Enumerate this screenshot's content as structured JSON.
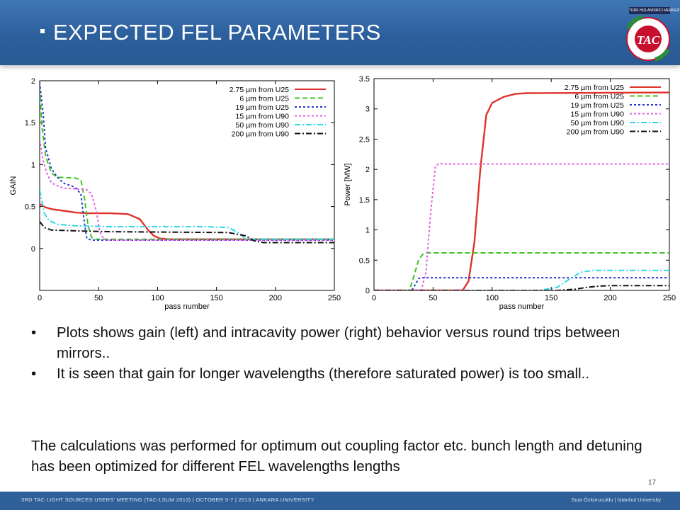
{
  "slide": {
    "title": "EXPECTED FEL PARAMETERS",
    "page_number": "17",
    "logo_text": "TAC",
    "logo_topbar": "TÜRK HIZLANDIRICI MERKEZİ",
    "logo_ring": "TURKISH ACCELERATOR CENTER",
    "footer_left": "3RD TAC LIGHT SOURCES USERS' MEETING (TAC-LSUM 2013) | OCTOBER 5-7 | 2013 | ANKARA UNIVERSITY",
    "footer_right": "Suat Özkorucuklu | İstanbul University",
    "colors": {
      "header": "#2f64a2",
      "footer": "#2f5f98",
      "logo_red": "#c8102e",
      "logo_green": "#2e8b3a"
    }
  },
  "bullets": [
    "Plots shows gain (left) and intracavity power (right) behavior versus round trips between mirrors..",
    "It is seen that gain for longer wavelengths (therefore saturated power) is too small.."
  ],
  "paragraph": "The calculations was performed for optimum out coupling factor etc. bunch length and  detuning has been optimized for different FEL wavelengths lengths",
  "chart_data": [
    {
      "type": "line",
      "title": "",
      "xlabel": "pass number",
      "ylabel": "GAIN",
      "xlim": [
        0,
        250
      ],
      "ylim": [
        -0.5,
        2
      ],
      "xticks": [
        "0",
        "50",
        "100",
        "150",
        "200",
        "250"
      ],
      "yticks": [
        "0",
        "0.5",
        "1",
        "1.5",
        "2"
      ],
      "legend_position": "top-right",
      "series": [
        {
          "name": "2.75 µm from U25",
          "color": "#e0322b",
          "style": "solid",
          "points": [
            [
              0,
              0.53
            ],
            [
              5,
              0.49
            ],
            [
              10,
              0.47
            ],
            [
              20,
              0.45
            ],
            [
              30,
              0.43
            ],
            [
              40,
              0.42
            ],
            [
              60,
              0.42
            ],
            [
              75,
              0.41
            ],
            [
              85,
              0.35
            ],
            [
              92,
              0.22
            ],
            [
              97,
              0.15
            ],
            [
              102,
              0.12
            ],
            [
              110,
              0.11
            ],
            [
              250,
              0.11
            ]
          ]
        },
        {
          "name": "6 µm from U25",
          "color": "#3fc41e",
          "style": "dash",
          "points": [
            [
              0,
              1.9
            ],
            [
              2,
              1.45
            ],
            [
              5,
              1.1
            ],
            [
              10,
              0.9
            ],
            [
              15,
              0.85
            ],
            [
              30,
              0.84
            ],
            [
              35,
              0.82
            ],
            [
              38,
              0.6
            ],
            [
              41,
              0.28
            ],
            [
              44,
              0.13
            ],
            [
              48,
              0.11
            ],
            [
              250,
              0.11
            ]
          ]
        },
        {
          "name": "19 µm from U25",
          "color": "#2538d1",
          "style": "dot",
          "points": [
            [
              0,
              1.98
            ],
            [
              3,
              1.6
            ],
            [
              5,
              1.2
            ],
            [
              10,
              0.95
            ],
            [
              15,
              0.85
            ],
            [
              20,
              0.78
            ],
            [
              30,
              0.73
            ],
            [
              35,
              0.65
            ],
            [
              38,
              0.3
            ],
            [
              40,
              0.12
            ],
            [
              44,
              0.1
            ],
            [
              250,
              0.1
            ]
          ]
        },
        {
          "name": "15 µm from U90",
          "color": "#e55de6",
          "style": "dot",
          "points": [
            [
              0,
              1.3
            ],
            [
              3,
              1.05
            ],
            [
              6,
              0.9
            ],
            [
              10,
              0.78
            ],
            [
              20,
              0.72
            ],
            [
              40,
              0.7
            ],
            [
              44,
              0.65
            ],
            [
              48,
              0.45
            ],
            [
              51,
              0.2
            ],
            [
              54,
              0.12
            ],
            [
              57,
              0.1
            ],
            [
              250,
              0.1
            ]
          ]
        },
        {
          "name": "50 µm from U90",
          "color": "#32d7e6",
          "style": "dashdot",
          "points": [
            [
              0,
              0.7
            ],
            [
              4,
              0.42
            ],
            [
              8,
              0.33
            ],
            [
              15,
              0.29
            ],
            [
              30,
              0.27
            ],
            [
              60,
              0.26
            ],
            [
              140,
              0.26
            ],
            [
              160,
              0.25
            ],
            [
              170,
              0.18
            ],
            [
              175,
              0.11
            ],
            [
              250,
              0.11
            ]
          ]
        },
        {
          "name": "200 µm from U90",
          "color": "#111111",
          "style": "dashdot",
          "points": [
            [
              0,
              0.32
            ],
            [
              4,
              0.25
            ],
            [
              10,
              0.22
            ],
            [
              30,
              0.21
            ],
            [
              60,
              0.2
            ],
            [
              160,
              0.19
            ],
            [
              175,
              0.15
            ],
            [
              182,
              0.09
            ],
            [
              190,
              0.07
            ],
            [
              250,
              0.07
            ]
          ]
        }
      ]
    },
    {
      "type": "line",
      "title": "",
      "xlabel": "pass number",
      "ylabel": "Power [MW]",
      "xlim": [
        0,
        250
      ],
      "ylim": [
        0,
        3.5
      ],
      "xticks": [
        "0",
        "50",
        "100",
        "150",
        "200",
        "250"
      ],
      "yticks": [
        "0",
        "0.5",
        "1",
        "1.5",
        "2",
        "2.5",
        "3",
        "3.5"
      ],
      "legend_position": "top-right",
      "series": [
        {
          "name": "2.75 µm from U25",
          "color": "#e0322b",
          "style": "solid",
          "points": [
            [
              0,
              0
            ],
            [
              75,
              0
            ],
            [
              80,
              0.15
            ],
            [
              85,
              0.8
            ],
            [
              90,
              2.0
            ],
            [
              95,
              2.9
            ],
            [
              100,
              3.1
            ],
            [
              110,
              3.2
            ],
            [
              120,
              3.25
            ],
            [
              130,
              3.26
            ],
            [
              250,
              3.27
            ]
          ]
        },
        {
          "name": "6 µm from U25",
          "color": "#3fc41e",
          "style": "dash",
          "points": [
            [
              0,
              0
            ],
            [
              30,
              0
            ],
            [
              34,
              0.25
            ],
            [
              38,
              0.52
            ],
            [
              42,
              0.61
            ],
            [
              45,
              0.62
            ],
            [
              250,
              0.62
            ]
          ]
        },
        {
          "name": "19 µm from U25",
          "color": "#2538d1",
          "style": "dot",
          "points": [
            [
              0,
              0
            ],
            [
              32,
              0
            ],
            [
              35,
              0.1
            ],
            [
              38,
              0.2
            ],
            [
              42,
              0.21
            ],
            [
              250,
              0.21
            ]
          ]
        },
        {
          "name": "15 µm from U90",
          "color": "#e55de6",
          "style": "dot",
          "points": [
            [
              0,
              0
            ],
            [
              40,
              0
            ],
            [
              44,
              0.3
            ],
            [
              48,
              1.3
            ],
            [
              52,
              2.05
            ],
            [
              55,
              2.1
            ],
            [
              60,
              2.09
            ],
            [
              250,
              2.09
            ]
          ]
        },
        {
          "name": "50 µm from U90",
          "color": "#32d7e6",
          "style": "dashdot",
          "points": [
            [
              0,
              0
            ],
            [
              140,
              0
            ],
            [
              155,
              0.05
            ],
            [
              165,
              0.18
            ],
            [
              175,
              0.3
            ],
            [
              185,
              0.33
            ],
            [
              250,
              0.33
            ]
          ]
        },
        {
          "name": "200 µm from U90",
          "color": "#111111",
          "style": "dashdot",
          "points": [
            [
              0,
              0
            ],
            [
              155,
              0
            ],
            [
              170,
              0.02
            ],
            [
              180,
              0.05
            ],
            [
              190,
              0.07
            ],
            [
              200,
              0.08
            ],
            [
              250,
              0.08
            ]
          ]
        }
      ]
    }
  ]
}
